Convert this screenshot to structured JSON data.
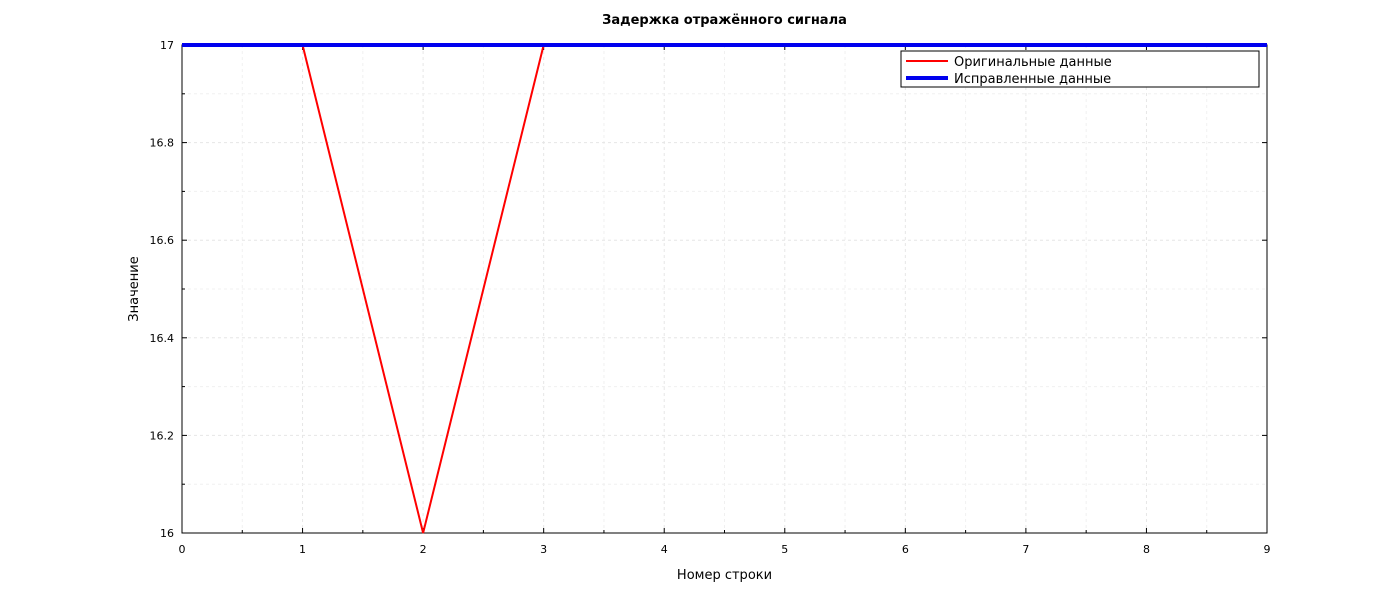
{
  "chart_data": {
    "type": "line",
    "title": "Задержка отражённого сигнала",
    "xlabel": "Номер строки",
    "ylabel": "Значение",
    "xlim": [
      0,
      9
    ],
    "ylim": [
      16,
      17
    ],
    "x_ticks": [
      "0",
      "1",
      "2",
      "3",
      "4",
      "5",
      "6",
      "7",
      "8",
      "9"
    ],
    "y_ticks": [
      "16",
      "16.2",
      "16.4",
      "16.6",
      "16.8",
      "17"
    ],
    "grid": true,
    "legend_position": "top-right",
    "series": [
      {
        "name": "Оригинальные данные",
        "color": "#ff0000",
        "x": [
          0,
          1,
          2,
          3,
          4,
          5,
          6,
          7,
          8,
          9
        ],
        "y": [
          17,
          17,
          16,
          17,
          17,
          17,
          17,
          17,
          17,
          17
        ]
      },
      {
        "name": "Исправленные данные",
        "color": "#0000ee",
        "x": [
          0,
          1,
          2,
          3,
          4,
          5,
          6,
          7,
          8,
          9
        ],
        "y": [
          17,
          17,
          17,
          17,
          17,
          17,
          17,
          17,
          17,
          17
        ]
      }
    ]
  }
}
